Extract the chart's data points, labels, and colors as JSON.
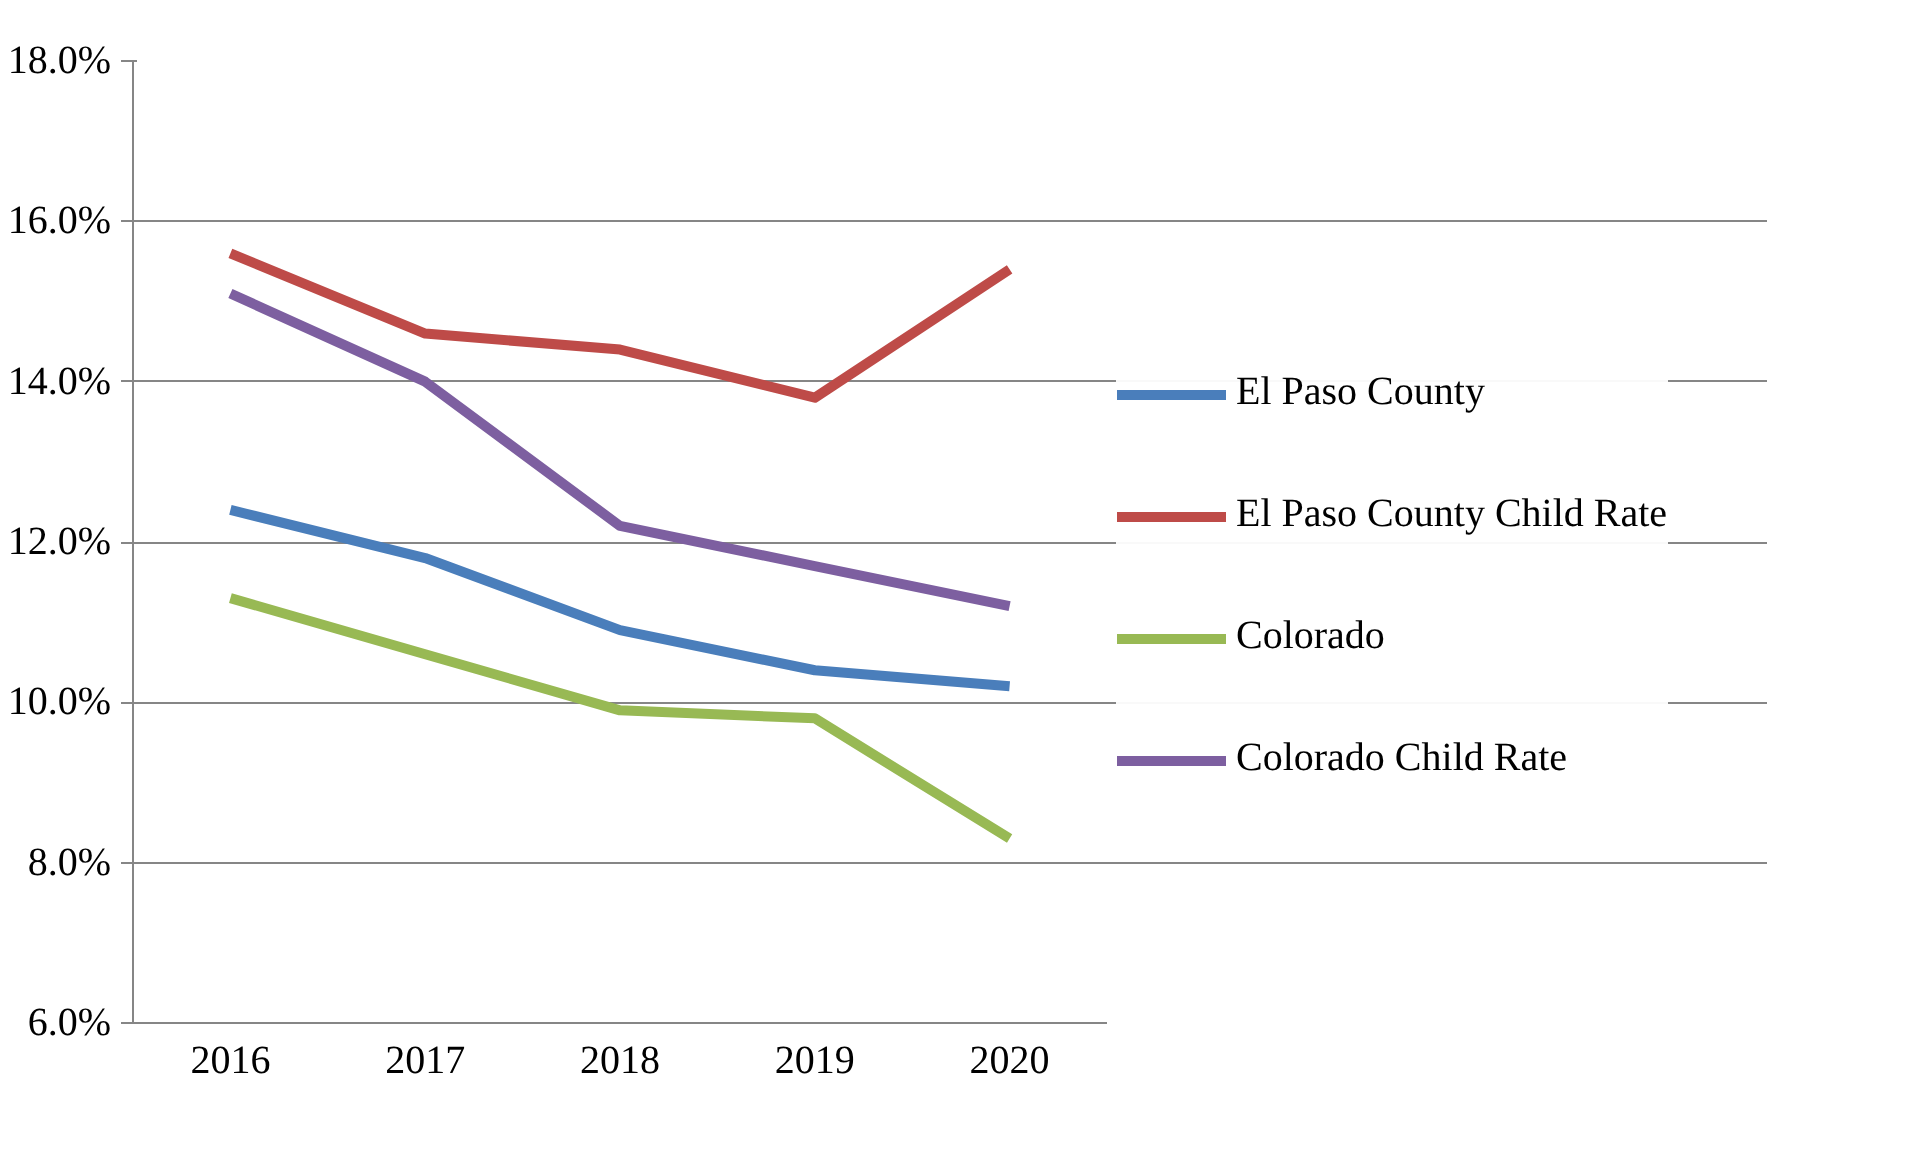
{
  "chart_data": {
    "type": "line",
    "categories": [
      "2016",
      "2017",
      "2018",
      "2019",
      "2020"
    ],
    "series": [
      {
        "name": "El Paso County",
        "color": "#4a7ebb",
        "values": [
          12.4,
          11.8,
          10.9,
          10.4,
          10.2
        ]
      },
      {
        "name": "El Paso County Child Rate",
        "color": "#be4b48",
        "values": [
          15.6,
          14.6,
          14.4,
          13.8,
          15.4
        ]
      },
      {
        "name": "Colorado",
        "color": "#98b954",
        "values": [
          11.3,
          10.6,
          9.9,
          9.8,
          8.3
        ]
      },
      {
        "name": "Colorado Child Rate",
        "color": "#7d5fa0",
        "values": [
          15.1,
          14.0,
          12.2,
          11.7,
          11.2
        ]
      }
    ],
    "ylim": [
      6,
      18
    ],
    "yticks": [
      {
        "value": 6,
        "label": "6.0%"
      },
      {
        "value": 8,
        "label": "8.0%"
      },
      {
        "value": 10,
        "label": "10.0%"
      },
      {
        "value": 12,
        "label": "12.0%"
      },
      {
        "value": 14,
        "label": "14.0%"
      },
      {
        "value": 16,
        "label": "16.0%"
      },
      {
        "value": 18,
        "label": "18.0%"
      }
    ],
    "grid": "y",
    "legend": "right",
    "marker": "none",
    "line_style": "solid"
  }
}
